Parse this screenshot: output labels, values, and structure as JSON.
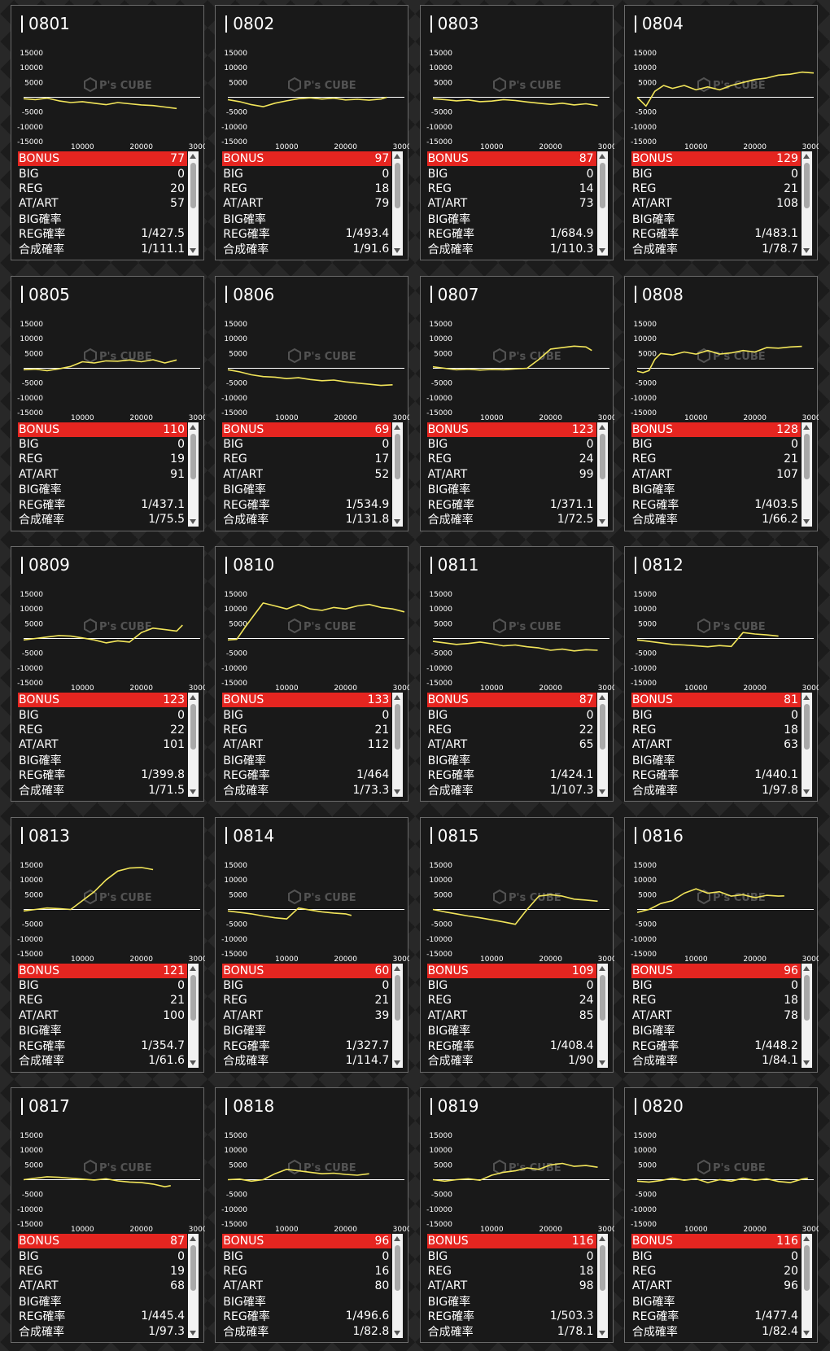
{
  "labels": {
    "bonus": "BONUS",
    "big": "BIG",
    "reg": "REG",
    "at_art": "AT/ART",
    "big_prob": "BIG確率",
    "reg_prob": "REG確率",
    "total_prob": "合成確率"
  },
  "watermark": {
    "brand": "P's CUBE"
  },
  "graph_axes": {
    "y_ticks": [
      "15000",
      "10000",
      "5000",
      "-5000",
      "-10000",
      "-15000"
    ],
    "x_ticks": [
      "10000",
      "20000",
      "30000"
    ],
    "ylim": [
      -15000,
      15000
    ],
    "xlim": [
      0,
      30000
    ]
  },
  "colors": {
    "accent": "#e52520",
    "line": "#f2e55a",
    "panel": "#191919"
  },
  "machines": [
    {
      "no": "0801",
      "bonus": "77",
      "big": "0",
      "reg": "20",
      "at_art": "57",
      "big_prob": "",
      "reg_prob": "1/427.5",
      "total_prob": "1/111.1",
      "chart_data": {
        "type": "line",
        "x": [
          0,
          2000,
          4000,
          6000,
          8000,
          10000,
          12000,
          14000,
          16000,
          18000,
          20000,
          22000,
          24000,
          26000
        ],
        "y": [
          -500,
          -800,
          -300,
          -1200,
          -1800,
          -1500,
          -2000,
          -2500,
          -1800,
          -2200,
          -2600,
          -2800,
          -3300,
          -3800
        ]
      }
    },
    {
      "no": "0802",
      "bonus": "97",
      "big": "0",
      "reg": "18",
      "at_art": "79",
      "big_prob": "",
      "reg_prob": "1/493.4",
      "total_prob": "1/91.6",
      "chart_data": {
        "type": "line",
        "x": [
          0,
          2000,
          4000,
          6000,
          8000,
          10000,
          12000,
          14000,
          16000,
          18000,
          20000,
          22000,
          24000,
          26000,
          27000
        ],
        "y": [
          -800,
          -1500,
          -2500,
          -3200,
          -2000,
          -1200,
          -500,
          -200,
          -600,
          -300,
          -900,
          -700,
          -1000,
          -600,
          0
        ]
      }
    },
    {
      "no": "0803",
      "bonus": "87",
      "big": "0",
      "reg": "14",
      "at_art": "73",
      "big_prob": "",
      "reg_prob": "1/684.9",
      "total_prob": "1/110.3",
      "chart_data": {
        "type": "line",
        "x": [
          0,
          2000,
          4000,
          6000,
          8000,
          10000,
          12000,
          14000,
          16000,
          18000,
          20000,
          22000,
          24000,
          26000,
          28000
        ],
        "y": [
          -500,
          -800,
          -1200,
          -900,
          -1500,
          -1300,
          -800,
          -1100,
          -1600,
          -2000,
          -2400,
          -2000,
          -2600,
          -2200,
          -2800
        ]
      }
    },
    {
      "no": "0804",
      "bonus": "129",
      "big": "0",
      "reg": "21",
      "at_art": "108",
      "big_prob": "",
      "reg_prob": "1/483.1",
      "total_prob": "1/78.7",
      "chart_data": {
        "type": "line",
        "x": [
          0,
          1500,
          3000,
          4500,
          6000,
          8000,
          10000,
          12000,
          14000,
          16000,
          18000,
          20000,
          22000,
          24000,
          26000,
          28000,
          30000
        ],
        "y": [
          0,
          -3000,
          2000,
          4000,
          3000,
          4000,
          2500,
          3500,
          2500,
          4000,
          5000,
          6000,
          6500,
          7500,
          7800,
          8500,
          8200
        ]
      }
    },
    {
      "no": "0805",
      "bonus": "110",
      "big": "0",
      "reg": "19",
      "at_art": "91",
      "big_prob": "",
      "reg_prob": "1/437.1",
      "total_prob": "1/75.5",
      "chart_data": {
        "type": "line",
        "x": [
          0,
          2000,
          4000,
          6000,
          8000,
          10000,
          12000,
          14000,
          16000,
          18000,
          20000,
          22000,
          24000,
          26000
        ],
        "y": [
          -500,
          -300,
          -800,
          -200,
          600,
          2200,
          1800,
          2500,
          2400,
          2800,
          2200,
          2900,
          1800,
          2800
        ]
      }
    },
    {
      "no": "0806",
      "bonus": "69",
      "big": "0",
      "reg": "17",
      "at_art": "52",
      "big_prob": "",
      "reg_prob": "1/534.9",
      "total_prob": "1/131.8",
      "chart_data": {
        "type": "line",
        "x": [
          0,
          2000,
          4000,
          6000,
          8000,
          10000,
          12000,
          14000,
          16000,
          18000,
          20000,
          22000,
          24000,
          26000,
          28000
        ],
        "y": [
          -500,
          -1200,
          -2200,
          -2800,
          -3000,
          -3500,
          -3200,
          -3800,
          -4200,
          -4000,
          -4600,
          -5000,
          -5400,
          -5800,
          -5600
        ]
      }
    },
    {
      "no": "0807",
      "bonus": "123",
      "big": "0",
      "reg": "24",
      "at_art": "99",
      "big_prob": "",
      "reg_prob": "1/371.1",
      "total_prob": "1/72.5",
      "chart_data": {
        "type": "line",
        "x": [
          0,
          2000,
          4000,
          6000,
          8000,
          10000,
          12000,
          14000,
          16000,
          18000,
          20000,
          22000,
          24000,
          26000,
          27000
        ],
        "y": [
          500,
          0,
          -500,
          -300,
          -600,
          -400,
          -500,
          -200,
          0,
          3000,
          6500,
          7000,
          7500,
          7200,
          6000
        ]
      }
    },
    {
      "no": "0808",
      "bonus": "128",
      "big": "0",
      "reg": "21",
      "at_art": "107",
      "big_prob": "",
      "reg_prob": "1/403.5",
      "total_prob": "1/66.2",
      "chart_data": {
        "type": "line",
        "x": [
          0,
          1000,
          2000,
          3000,
          4000,
          6000,
          8000,
          10000,
          12000,
          14000,
          16000,
          18000,
          20000,
          22000,
          24000,
          26000,
          28000
        ],
        "y": [
          -1000,
          -1500,
          -800,
          3000,
          5000,
          4500,
          5500,
          4800,
          6000,
          4800,
          5200,
          6000,
          5500,
          7000,
          6800,
          7200,
          7400
        ]
      }
    },
    {
      "no": "0809",
      "bonus": "123",
      "big": "0",
      "reg": "22",
      "at_art": "101",
      "big_prob": "",
      "reg_prob": "1/399.8",
      "total_prob": "1/71.5",
      "chart_data": {
        "type": "line",
        "x": [
          0,
          2000,
          4000,
          6000,
          8000,
          10000,
          12000,
          14000,
          16000,
          18000,
          20000,
          22000,
          24000,
          26000,
          27000
        ],
        "y": [
          -500,
          0,
          500,
          1000,
          800,
          200,
          -500,
          -1500,
          -800,
          -1200,
          2000,
          3500,
          3000,
          2500,
          4500
        ]
      }
    },
    {
      "no": "0810",
      "bonus": "133",
      "big": "0",
      "reg": "21",
      "at_art": "112",
      "big_prob": "",
      "reg_prob": "1/464",
      "total_prob": "1/73.3",
      "chart_data": {
        "type": "line",
        "x": [
          0,
          1500,
          3000,
          4500,
          6000,
          8000,
          10000,
          12000,
          14000,
          16000,
          18000,
          20000,
          22000,
          24000,
          26000,
          28000,
          30000
        ],
        "y": [
          -500,
          -300,
          4000,
          8000,
          12000,
          11000,
          10000,
          11500,
          10000,
          9500,
          10500,
          10000,
          11000,
          11500,
          10500,
          10000,
          9000
        ]
      }
    },
    {
      "no": "0811",
      "bonus": "87",
      "big": "0",
      "reg": "22",
      "at_art": "65",
      "big_prob": "",
      "reg_prob": "1/424.1",
      "total_prob": "1/107.3",
      "chart_data": {
        "type": "line",
        "x": [
          0,
          2000,
          4000,
          6000,
          8000,
          10000,
          12000,
          14000,
          16000,
          18000,
          20000,
          22000,
          24000,
          26000,
          28000
        ],
        "y": [
          -1000,
          -1500,
          -2000,
          -1700,
          -1200,
          -1800,
          -2500,
          -2200,
          -2800,
          -3200,
          -4000,
          -3600,
          -4200,
          -3800,
          -4000
        ]
      }
    },
    {
      "no": "0812",
      "bonus": "81",
      "big": "0",
      "reg": "18",
      "at_art": "63",
      "big_prob": "",
      "reg_prob": "1/440.1",
      "total_prob": "1/97.8",
      "chart_data": {
        "type": "line",
        "x": [
          0,
          2000,
          4000,
          6000,
          8000,
          10000,
          12000,
          14000,
          16000,
          18000,
          20000,
          22000,
          24000
        ],
        "y": [
          -500,
          -1000,
          -1500,
          -2000,
          -2200,
          -2500,
          -2800,
          -2400,
          -2700,
          2000,
          1500,
          1200,
          800
        ]
      }
    },
    {
      "no": "0813",
      "bonus": "121",
      "big": "0",
      "reg": "21",
      "at_art": "100",
      "big_prob": "",
      "reg_prob": "1/354.7",
      "total_prob": "1/61.6",
      "chart_data": {
        "type": "line",
        "x": [
          0,
          2000,
          4000,
          6000,
          8000,
          10000,
          12000,
          14000,
          16000,
          18000,
          20000,
          22000
        ],
        "y": [
          -500,
          0,
          500,
          300,
          0,
          3000,
          6000,
          10000,
          13000,
          14000,
          14200,
          13500
        ]
      }
    },
    {
      "no": "0814",
      "bonus": "60",
      "big": "0",
      "reg": "21",
      "at_art": "39",
      "big_prob": "",
      "reg_prob": "1/327.7",
      "total_prob": "1/114.7",
      "chart_data": {
        "type": "line",
        "x": [
          0,
          2000,
          4000,
          6000,
          8000,
          10000,
          12000,
          14000,
          16000,
          18000,
          20000,
          21000
        ],
        "y": [
          -500,
          -1000,
          -1500,
          -2200,
          -2800,
          -3200,
          500,
          -200,
          -800,
          -1200,
          -1500,
          -2000
        ]
      }
    },
    {
      "no": "0815",
      "bonus": "109",
      "big": "0",
      "reg": "24",
      "at_art": "85",
      "big_prob": "",
      "reg_prob": "1/408.4",
      "total_prob": "1/90",
      "chart_data": {
        "type": "line",
        "x": [
          0,
          2000,
          4000,
          6000,
          8000,
          10000,
          12000,
          14000,
          16000,
          18000,
          20000,
          22000,
          24000,
          26000,
          28000
        ],
        "y": [
          0,
          -800,
          -1500,
          -2200,
          -2800,
          -3500,
          -4200,
          -5000,
          0,
          4500,
          5000,
          4500,
          3500,
          3200,
          2800
        ]
      }
    },
    {
      "no": "0816",
      "bonus": "96",
      "big": "0",
      "reg": "18",
      "at_art": "78",
      "big_prob": "",
      "reg_prob": "1/448.2",
      "total_prob": "1/84.1",
      "chart_data": {
        "type": "line",
        "x": [
          0,
          1000,
          2000,
          3000,
          4000,
          6000,
          8000,
          10000,
          12000,
          14000,
          16000,
          18000,
          20000,
          22000,
          24000,
          25000
        ],
        "y": [
          -1000,
          -500,
          0,
          1000,
          2000,
          3000,
          5500,
          7000,
          5500,
          6000,
          4500,
          5000,
          4000,
          4800,
          4500,
          4600
        ]
      }
    },
    {
      "no": "0817",
      "bonus": "87",
      "big": "0",
      "reg": "19",
      "at_art": "68",
      "big_prob": "",
      "reg_prob": "1/445.4",
      "total_prob": "1/97.3",
      "chart_data": {
        "type": "line",
        "x": [
          0,
          2000,
          4000,
          6000,
          8000,
          10000,
          12000,
          14000,
          16000,
          18000,
          20000,
          22000,
          24000,
          25000
        ],
        "y": [
          0,
          500,
          1000,
          800,
          500,
          200,
          -100,
          300,
          -400,
          -800,
          -1000,
          -1500,
          -2400,
          -2000
        ]
      }
    },
    {
      "no": "0818",
      "bonus": "96",
      "big": "0",
      "reg": "16",
      "at_art": "80",
      "big_prob": "",
      "reg_prob": "1/496.6",
      "total_prob": "1/82.8",
      "chart_data": {
        "type": "line",
        "x": [
          0,
          2000,
          4000,
          6000,
          8000,
          10000,
          12000,
          14000,
          16000,
          18000,
          20000,
          22000,
          24000
        ],
        "y": [
          0,
          200,
          -500,
          0,
          2000,
          3500,
          3000,
          2500,
          2000,
          2200,
          1800,
          1500,
          2000
        ]
      }
    },
    {
      "no": "0819",
      "bonus": "116",
      "big": "0",
      "reg": "18",
      "at_art": "98",
      "big_prob": "",
      "reg_prob": "1/503.3",
      "total_prob": "1/78.1",
      "chart_data": {
        "type": "line",
        "x": [
          0,
          2000,
          4000,
          6000,
          8000,
          10000,
          12000,
          14000,
          16000,
          18000,
          20000,
          22000,
          24000,
          26000,
          28000
        ],
        "y": [
          0,
          -500,
          0,
          300,
          -200,
          1500,
          2500,
          3000,
          4000,
          3500,
          5000,
          5500,
          4500,
          4800,
          4200
        ]
      }
    },
    {
      "no": "0820",
      "bonus": "116",
      "big": "0",
      "reg": "20",
      "at_art": "96",
      "big_prob": "",
      "reg_prob": "1/477.4",
      "total_prob": "1/82.4",
      "chart_data": {
        "type": "line",
        "x": [
          0,
          2000,
          4000,
          6000,
          8000,
          10000,
          12000,
          14000,
          16000,
          18000,
          20000,
          22000,
          24000,
          26000,
          28000,
          29000
        ],
        "y": [
          -500,
          -800,
          -300,
          500,
          -200,
          300,
          -1000,
          0,
          -500,
          500,
          -200,
          300,
          -600,
          -1000,
          200,
          500
        ]
      }
    }
  ]
}
